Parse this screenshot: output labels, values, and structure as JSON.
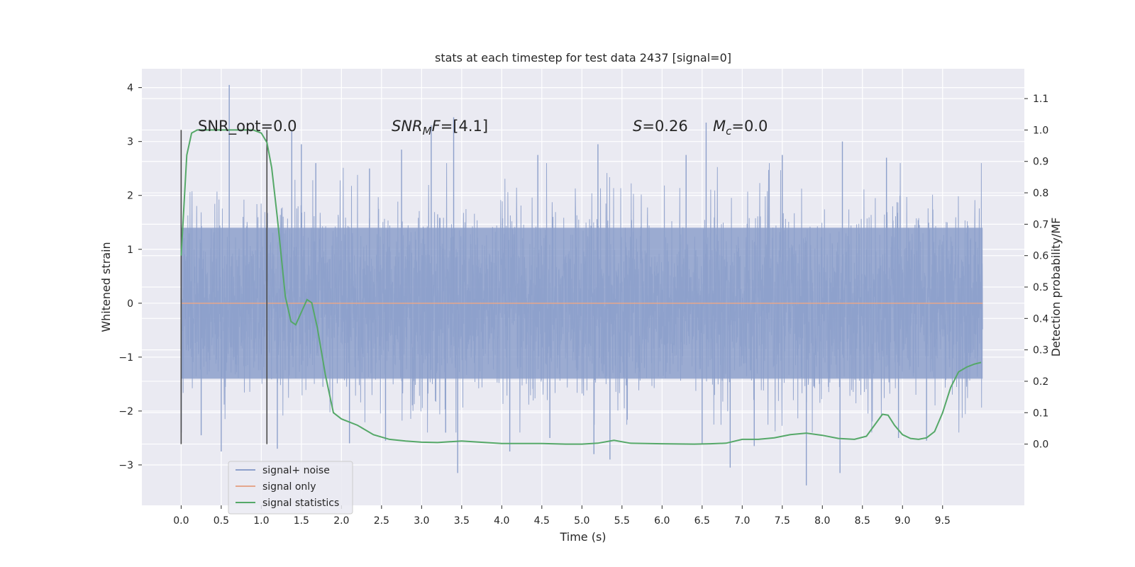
{
  "chart_data": {
    "type": "line",
    "title": "stats at each timestep for test data 2437 [signal=0]",
    "xlabel": "Time (s)",
    "ylabel_left": "Whitened strain",
    "ylabel_right": "Detection probability/MF",
    "xlim": [
      -0.49,
      10.52
    ],
    "ylim_left": [
      -3.75,
      4.35
    ],
    "ylim_right": [
      -0.195,
      1.195
    ],
    "x_ticks": [
      0.0,
      0.5,
      1.0,
      1.5,
      2.0,
      2.5,
      3.0,
      3.5,
      4.0,
      4.5,
      5.0,
      5.5,
      6.0,
      6.5,
      7.0,
      7.5,
      8.0,
      8.5,
      9.0,
      9.5
    ],
    "x_tick_labels": [
      "0.0",
      "0.5",
      "1.0",
      "1.5",
      "2.0",
      "2.5",
      "3.0",
      "3.5",
      "4.0",
      "4.5",
      "5.0",
      "5.5",
      "6.0",
      "6.5",
      "7.0",
      "7.5",
      "8.0",
      "8.5",
      "9.0",
      "9.5"
    ],
    "y_left_ticks": [
      -3,
      -2,
      -1,
      0,
      1,
      2,
      3,
      4
    ],
    "y_left_tick_labels": [
      "−3",
      "−2",
      "−1",
      "0",
      "1",
      "2",
      "3",
      "4"
    ],
    "y_right_ticks": [
      0.0,
      0.1,
      0.2,
      0.3,
      0.4,
      0.5,
      0.6,
      0.7,
      0.8,
      0.9,
      1.0,
      1.1
    ],
    "y_right_tick_labels": [
      "0.0",
      "0.1",
      "0.2",
      "0.3",
      "0.4",
      "0.5",
      "0.6",
      "0.7",
      "0.8",
      "0.9",
      "1.0",
      "1.1"
    ],
    "grid": true,
    "legend_position": "lower-left",
    "annotations": {
      "snr_opt": "SNR_opt=0.0",
      "snr_mf_var": "SNR",
      "snr_mf_sub": "M",
      "snr_mf_var2": "F",
      "snr_mf_value": "=[4.1]",
      "s_var": "S",
      "s_value": "=0.26",
      "mc_var": "M",
      "mc_sub": "c",
      "mc_value": "=0.0"
    },
    "vertical_markers_x": [
      0.0,
      1.07
    ],
    "series": [
      {
        "name": "signal+ noise",
        "color": "#8da0cb",
        "axis": "left",
        "x_range": [
          0.0,
          10.0
        ],
        "noise_band": [
          -1.4,
          1.4
        ],
        "peaks_high": [
          [
            0.6,
            4.05
          ],
          [
            3.4,
            3.45
          ],
          [
            3.12,
            3.3
          ],
          [
            6.55,
            3.35
          ],
          [
            1.38,
            3.2
          ],
          [
            8.25,
            3.0
          ],
          [
            1.5,
            2.95
          ],
          [
            5.2,
            2.95
          ],
          [
            2.75,
            2.85
          ],
          [
            8.8,
            2.7
          ],
          [
            6.3,
            2.75
          ],
          [
            7.5,
            2.75
          ],
          [
            4.45,
            2.75
          ],
          [
            1.68,
            2.6
          ],
          [
            2.35,
            2.5
          ]
        ],
        "peaks_low": [
          [
            7.8,
            -3.38
          ],
          [
            3.45,
            -3.15
          ],
          [
            8.22,
            -3.15
          ],
          [
            6.85,
            -3.05
          ],
          [
            0.5,
            -2.75
          ],
          [
            1.2,
            -2.7
          ],
          [
            4.1,
            -2.75
          ],
          [
            5.15,
            -2.8
          ],
          [
            5.35,
            -2.9
          ],
          [
            2.1,
            -2.6
          ],
          [
            9.3,
            -2.55
          ],
          [
            6.5,
            -2.6
          ],
          [
            2.55,
            -2.55
          ],
          [
            4.6,
            -2.5
          ],
          [
            8.95,
            -2.5
          ],
          [
            7.15,
            -2.65
          ],
          [
            0.25,
            -2.45
          ],
          [
            3.3,
            -2.4
          ]
        ]
      },
      {
        "name": "signal only",
        "color": "#e5a78d",
        "axis": "left",
        "x": [
          0.0,
          10.0
        ],
        "y": [
          0.0,
          0.0
        ]
      },
      {
        "name": "signal statistics",
        "color": "#55a868",
        "axis": "right",
        "x": [
          0.0,
          0.07,
          0.13,
          0.2,
          0.3,
          0.5,
          0.7,
          0.9,
          1.0,
          1.07,
          1.13,
          1.2,
          1.3,
          1.37,
          1.43,
          1.5,
          1.57,
          1.63,
          1.7,
          1.8,
          1.9,
          2.0,
          2.2,
          2.4,
          2.6,
          2.8,
          3.0,
          3.2,
          3.5,
          3.8,
          4.0,
          4.5,
          4.8,
          5.0,
          5.2,
          5.4,
          5.6,
          6.0,
          6.4,
          6.6,
          6.8,
          7.0,
          7.2,
          7.4,
          7.6,
          7.8,
          8.0,
          8.2,
          8.4,
          8.55,
          8.65,
          8.75,
          8.82,
          8.9,
          9.0,
          9.1,
          9.2,
          9.3,
          9.4,
          9.5,
          9.6,
          9.7,
          9.8,
          9.9,
          9.98
        ],
        "y": [
          0.6,
          0.92,
          0.99,
          1.0,
          1.0,
          1.0,
          1.0,
          1.0,
          0.99,
          0.96,
          0.88,
          0.72,
          0.47,
          0.39,
          0.38,
          0.42,
          0.46,
          0.45,
          0.37,
          0.22,
          0.1,
          0.08,
          0.06,
          0.03,
          0.015,
          0.01,
          0.006,
          0.005,
          0.01,
          0.005,
          0.002,
          0.002,
          0.0,
          0.0,
          0.003,
          0.012,
          0.003,
          0.001,
          0.0,
          0.001,
          0.003,
          0.015,
          0.015,
          0.02,
          0.03,
          0.035,
          0.028,
          0.018,
          0.015,
          0.025,
          0.06,
          0.095,
          0.092,
          0.06,
          0.03,
          0.018,
          0.015,
          0.02,
          0.04,
          0.1,
          0.18,
          0.23,
          0.245,
          0.255,
          0.26
        ]
      }
    ]
  }
}
